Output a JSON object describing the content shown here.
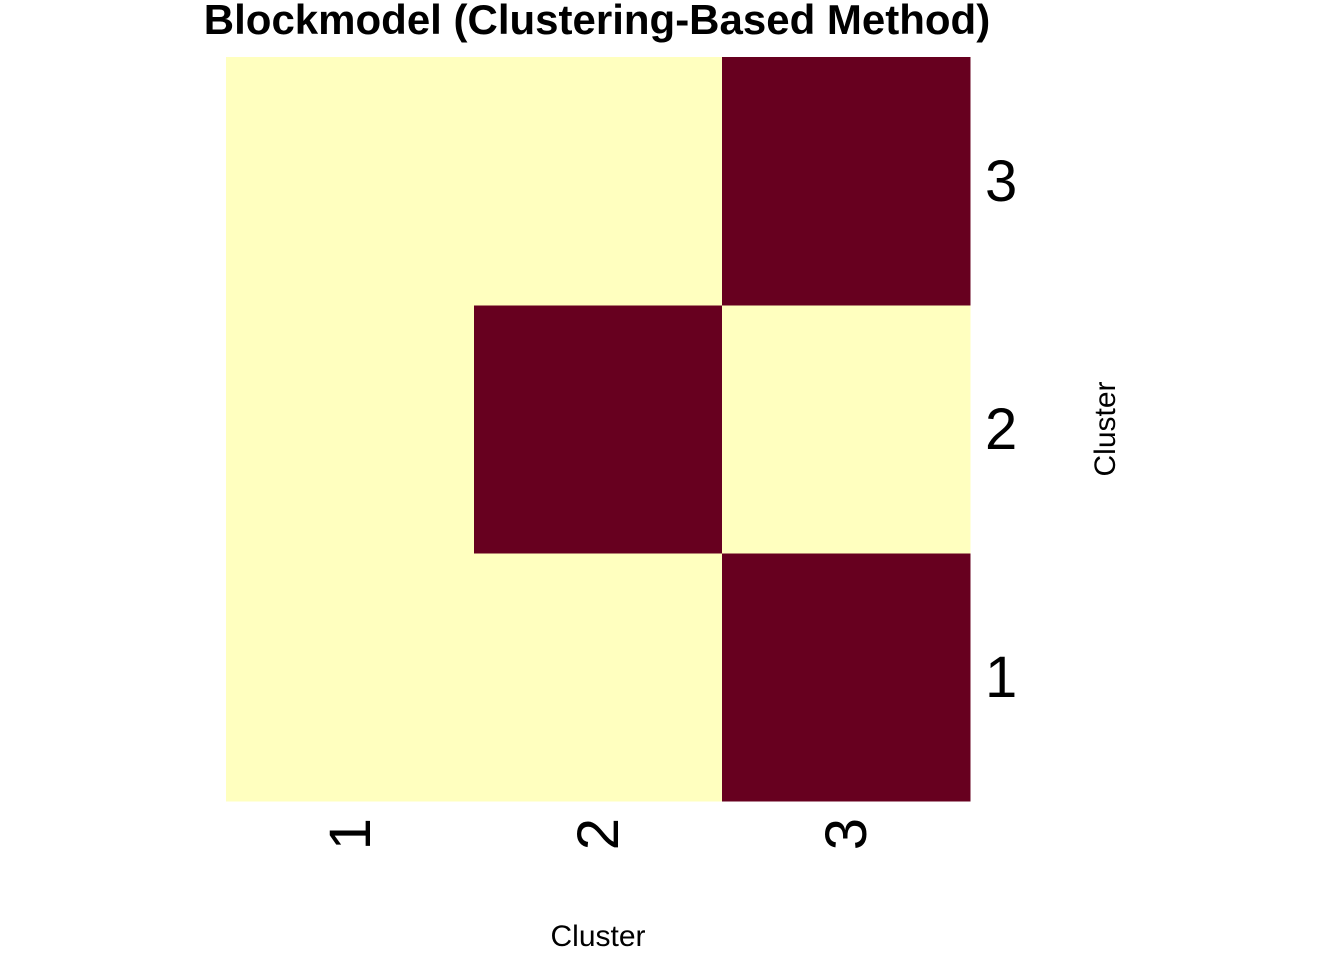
{
  "chart_data": {
    "type": "heatmap",
    "title": "Blockmodel (Clustering-Based Method)",
    "xlabel": "Cluster",
    "ylabel": "Cluster",
    "x_categories": [
      "1",
      "2",
      "3"
    ],
    "y_categories": [
      "1",
      "2",
      "3"
    ],
    "values": [
      [
        0,
        0,
        1
      ],
      [
        0,
        1,
        0
      ],
      [
        0,
        0,
        1
      ]
    ],
    "value_range": [
      0,
      1
    ],
    "colors": {
      "low": "#FFFFBF",
      "high": "#67001F"
    },
    "legend": "none",
    "grid": false
  }
}
